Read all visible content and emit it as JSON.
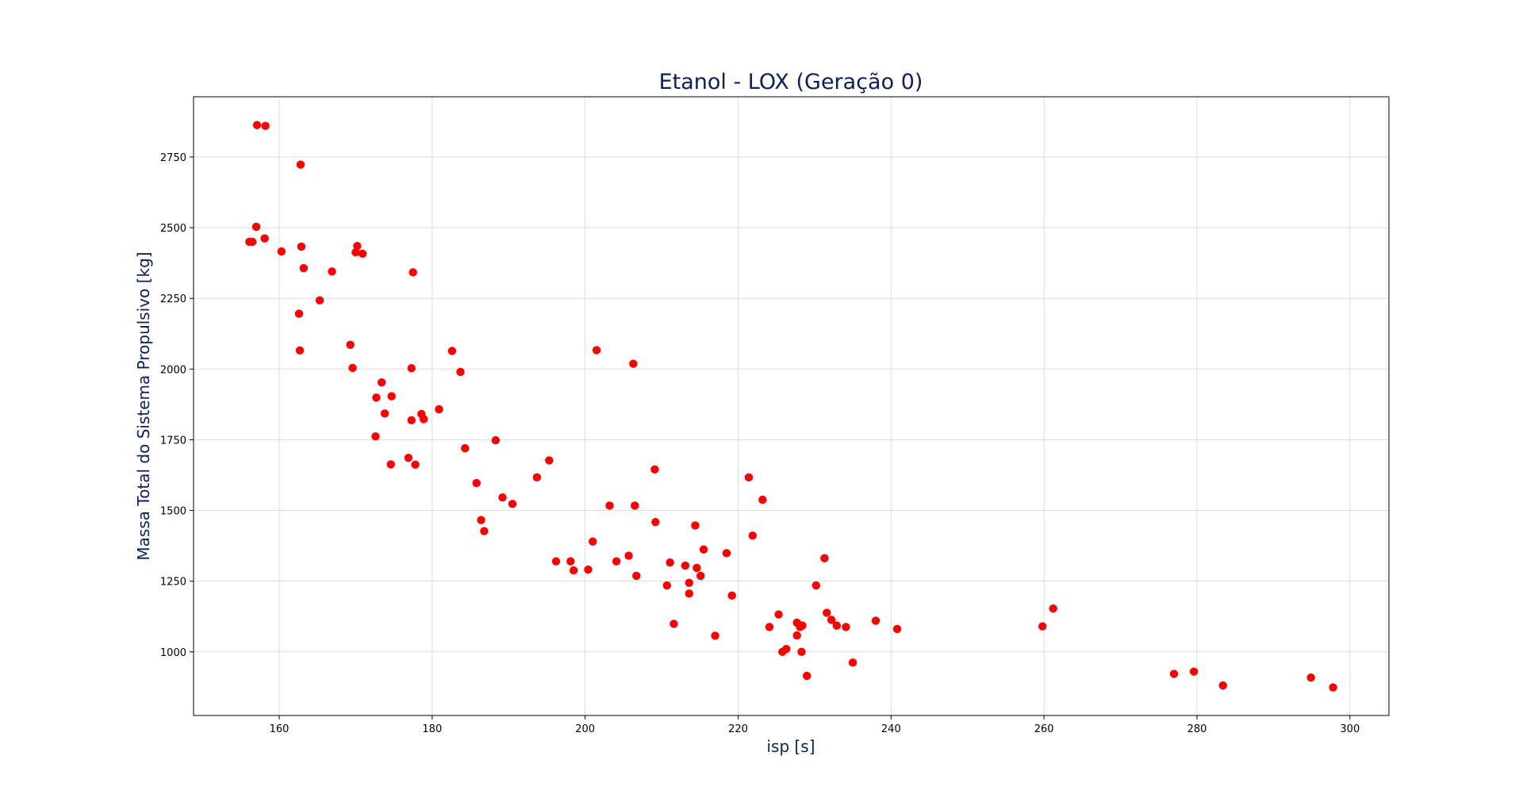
{
  "chart_data": {
    "type": "scatter",
    "title": "Etanol - LOX (Geração 0)",
    "xlabel": "isp [s]",
    "ylabel": "Massa Total do Sistema Propulsivo [kg]",
    "xlim": [
      148.8,
      305.1
    ],
    "ylim": [
      775,
      2963
    ],
    "xticks": [
      160,
      180,
      200,
      220,
      240,
      260,
      280,
      300
    ],
    "yticks": [
      1000,
      1250,
      1500,
      1750,
      2000,
      2250,
      2500,
      2750
    ],
    "grid": true,
    "marker_color": "#ff0000",
    "title_color": "#0b1f5c",
    "series": [
      {
        "points": [
          [
            157.1,
            2863
          ],
          [
            158.2,
            2860
          ],
          [
            162.8,
            2723
          ],
          [
            157.0,
            2503
          ],
          [
            156.1,
            2450
          ],
          [
            156.5,
            2450
          ],
          [
            158.1,
            2462
          ],
          [
            160.3,
            2416
          ],
          [
            162.9,
            2433
          ],
          [
            163.2,
            2357
          ],
          [
            165.3,
            2243
          ],
          [
            162.6,
            2196
          ],
          [
            162.7,
            2066
          ],
          [
            166.9,
            2345
          ],
          [
            170.2,
            2435
          ],
          [
            170.0,
            2413
          ],
          [
            170.9,
            2408
          ],
          [
            177.5,
            2342
          ],
          [
            169.3,
            2086
          ],
          [
            169.6,
            2004
          ],
          [
            173.4,
            1953
          ],
          [
            172.7,
            1899
          ],
          [
            174.7,
            1904
          ],
          [
            173.8,
            1843
          ],
          [
            172.6,
            1762
          ],
          [
            174.6,
            1663
          ],
          [
            177.3,
            2003
          ],
          [
            178.6,
            1841
          ],
          [
            177.3,
            1819
          ],
          [
            178.9,
            1823
          ],
          [
            180.9,
            1858
          ],
          [
            176.9,
            1686
          ],
          [
            177.8,
            1662
          ],
          [
            182.6,
            2064
          ],
          [
            183.7,
            1990
          ],
          [
            184.3,
            1720
          ],
          [
            185.8,
            1597
          ],
          [
            186.4,
            1466
          ],
          [
            186.8,
            1427
          ],
          [
            188.3,
            1748
          ],
          [
            189.2,
            1546
          ],
          [
            190.5,
            1523
          ],
          [
            193.7,
            1617
          ],
          [
            195.3,
            1677
          ],
          [
            196.2,
            1320
          ],
          [
            198.1,
            1320
          ],
          [
            198.5,
            1288
          ],
          [
            200.4,
            1291
          ],
          [
            201.5,
            2067
          ],
          [
            201.0,
            1390
          ],
          [
            203.2,
            1517
          ],
          [
            204.1,
            1320
          ],
          [
            205.7,
            1340
          ],
          [
            206.3,
            2019
          ],
          [
            206.5,
            1517
          ],
          [
            206.7,
            1269
          ],
          [
            209.1,
            1645
          ],
          [
            209.2,
            1459
          ],
          [
            210.7,
            1235
          ],
          [
            211.1,
            1316
          ],
          [
            211.6,
            1099
          ],
          [
            213.1,
            1305
          ],
          [
            213.6,
            1244
          ],
          [
            213.6,
            1206
          ],
          [
            214.4,
            1447
          ],
          [
            214.6,
            1297
          ],
          [
            215.1,
            1269
          ],
          [
            215.5,
            1362
          ],
          [
            217.0,
            1057
          ],
          [
            218.5,
            1349
          ],
          [
            219.2,
            1199
          ],
          [
            221.4,
            1617
          ],
          [
            221.9,
            1411
          ],
          [
            223.2,
            1538
          ],
          [
            224.1,
            1088
          ],
          [
            225.3,
            1132
          ],
          [
            225.8,
            1000
          ],
          [
            226.3,
            1010
          ],
          [
            227.7,
            1103
          ],
          [
            227.7,
            1058
          ],
          [
            228.1,
            1088
          ],
          [
            228.4,
            1093
          ],
          [
            228.3,
            1000
          ],
          [
            229.0,
            915
          ],
          [
            230.2,
            1235
          ],
          [
            231.3,
            1331
          ],
          [
            231.6,
            1138
          ],
          [
            232.2,
            1113
          ],
          [
            232.9,
            1093
          ],
          [
            234.1,
            1088
          ],
          [
            235.0,
            962
          ],
          [
            238.0,
            1110
          ],
          [
            240.8,
            1081
          ],
          [
            259.8,
            1090
          ],
          [
            261.2,
            1153
          ],
          [
            277.0,
            922
          ],
          [
            279.6,
            930
          ],
          [
            283.4,
            881
          ],
          [
            294.9,
            909
          ],
          [
            297.8,
            874
          ]
        ]
      }
    ]
  }
}
